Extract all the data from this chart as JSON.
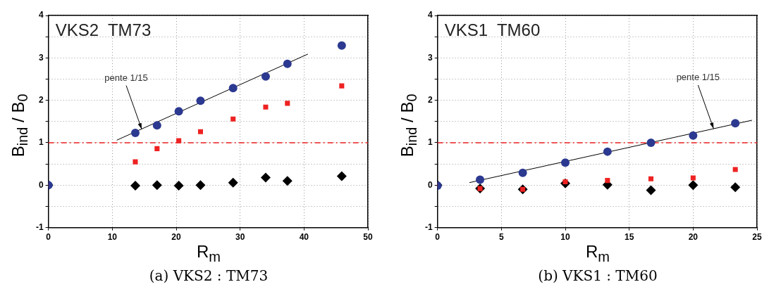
{
  "chart_data": [
    {
      "type": "scatter",
      "title": "VKS2  TM73",
      "xlabel": "R$_{m}$",
      "ylabel": "B$_{ind}$ / B$_{0}$",
      "xlim": [
        0,
        50
      ],
      "xticks": [
        0,
        10,
        20,
        30,
        40,
        50
      ],
      "ylim": [
        -1,
        4
      ],
      "yticks": [
        -1,
        {
          "value": -0.5,
          "label": null
        },
        0,
        {
          "value": 0.5,
          "label": null
        },
        1,
        {
          "value": 1.5,
          "label": null
        },
        2,
        {
          "value": 2.5,
          "label": null
        },
        3,
        {
          "value": 3.5,
          "label": null
        },
        4
      ],
      "grid": true,
      "legend": false,
      "series": [
        {
          "type": "line",
          "color": "#000000",
          "marker": "none",
          "line_style": "solid",
          "x": [
            10.7,
            40.6
          ],
          "values": [
            1.06,
            3.09
          ]
        },
        {
          "color": "#2b3990",
          "marker": "circle",
          "x": [
            0,
            13.6,
            17.0,
            20.4,
            23.8,
            28.9,
            34.0,
            37.4,
            45.9
          ],
          "values": [
            0,
            1.23,
            1.41,
            1.74,
            1.99,
            2.29,
            2.56,
            2.86,
            3.29
          ]
        },
        {
          "color": "#ee2222",
          "marker": "square",
          "x": [
            0,
            13.6,
            17.0,
            20.4,
            23.8,
            28.9,
            34.0,
            37.4,
            45.9
          ],
          "values": [
            0,
            0.55,
            0.86,
            1.05,
            1.26,
            1.56,
            1.84,
            1.93,
            2.34
          ]
        },
        {
          "color": "#000000",
          "marker": "diamond",
          "x": [
            0,
            13.6,
            17.0,
            20.4,
            23.8,
            28.9,
            34.0,
            37.4,
            45.9
          ],
          "values": [
            0,
            -0.01,
            0,
            -0.01,
            0,
            0.06,
            0.18,
            0.1,
            0.21
          ]
        }
      ],
      "ref_lines": [
        {
          "axis": "y",
          "value": 1,
          "color": "#ee2222",
          "line_style": "dashed"
        }
      ],
      "annotations": [
        {
          "text": "pente 1/15",
          "x": 14.6,
          "y": 1.32
        },
        "(a) VKS2 : TM73"
      ]
    },
    {
      "type": "scatter",
      "title": "VKS1  TM60",
      "xlabel": "R$_{m}$",
      "ylabel": "B$_{ind}$ / B$_{0}$",
      "xlim": [
        0,
        25
      ],
      "xticks": [
        0,
        5,
        10,
        15,
        20,
        25
      ],
      "ylim": [
        -1,
        4
      ],
      "yticks": [
        -1,
        {
          "value": -0.5,
          "label": null
        },
        0,
        {
          "value": 0.5,
          "label": null
        },
        1,
        {
          "value": 1.5,
          "label": null
        },
        2,
        {
          "value": 2.5,
          "label": null
        },
        3,
        {
          "value": 3.5,
          "label": null
        },
        4
      ],
      "grid": true,
      "legend": false,
      "series": [
        {
          "type": "line",
          "color": "#000000",
          "marker": "none",
          "line_style": "solid",
          "x": [
            2.5,
            24.6
          ],
          "values": [
            0.06,
            1.53
          ]
        },
        {
          "color": "#2b3990",
          "marker": "circle",
          "x": [
            0,
            3.33,
            6.67,
            10,
            13.3,
            16.7,
            20,
            23.3
          ],
          "values": [
            -0.01,
            0.13,
            0.29,
            0.53,
            0.79,
            1.0,
            1.17,
            1.46
          ]
        },
        {
          "color": "#ee2222",
          "marker": "square",
          "x": [
            0,
            3.33,
            6.67,
            10,
            13.3,
            16.7,
            20,
            23.3
          ],
          "values": [
            0,
            -0.08,
            -0.1,
            0.08,
            0.11,
            0.15,
            0.17,
            0.37
          ]
        },
        {
          "color": "#000000",
          "marker": "diamond",
          "x": [
            0,
            3.33,
            6.67,
            10,
            13.3,
            16.7,
            20,
            23.3
          ],
          "values": [
            0,
            -0.08,
            -0.1,
            0.04,
            0.01,
            -0.12,
            0,
            -0.05
          ]
        }
      ],
      "ref_lines": [
        {
          "axis": "y",
          "value": 1,
          "color": "#ee2222",
          "line_style": "dashed"
        }
      ],
      "annotations": [
        {
          "text": "pente 1/15",
          "x": 21.6,
          "y": 1.33
        },
        "(b) VKS1 : TM60"
      ]
    }
  ]
}
